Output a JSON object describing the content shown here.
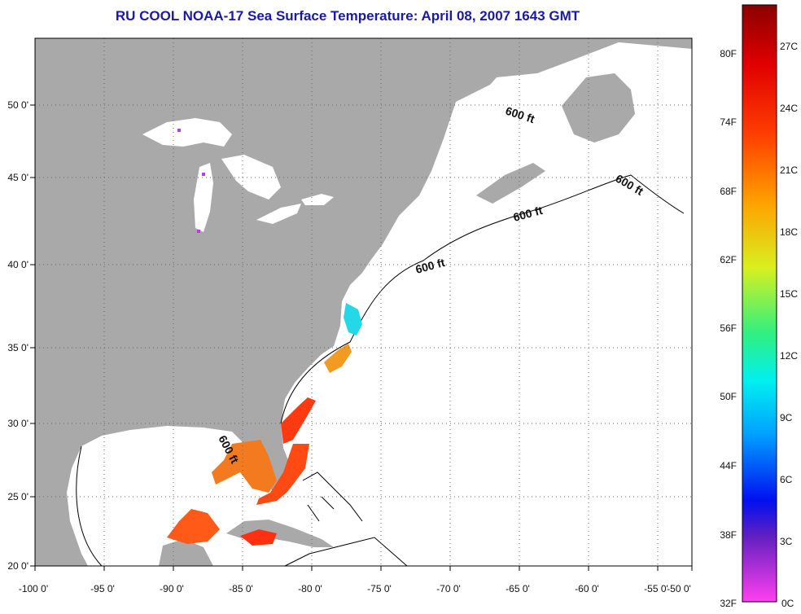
{
  "title": "RU COOL  NOAA-17  Sea Surface Temperature:  April 08, 2007 1643 GMT",
  "x_ticks": [
    "-100 0'",
    "-95 0'",
    "-90 0'",
    "-85 0'",
    "-80 0'",
    "-75 0'",
    "-70 0'",
    "-65 0'",
    "-60 0'",
    "-55 0'",
    "-50 0'"
  ],
  "y_ticks": [
    "50 0'",
    "45 0'",
    "40 0'",
    "35 0'",
    "30 0'",
    "25 0'",
    "20 0'"
  ],
  "isobath_label": "600 ft",
  "colorbar": {
    "fahrenheit": [
      "80F",
      "74F",
      "68F",
      "62F",
      "56F",
      "50F",
      "44F",
      "38F",
      "32F"
    ],
    "celsius": [
      "27C",
      "24C",
      "21C",
      "18C",
      "15C",
      "12C",
      "9C",
      "6C",
      "3C",
      "0C"
    ]
  },
  "colors": {
    "land": "#a9a9a9",
    "ocean": "#ffffff",
    "title": "#1a1aa6"
  }
}
